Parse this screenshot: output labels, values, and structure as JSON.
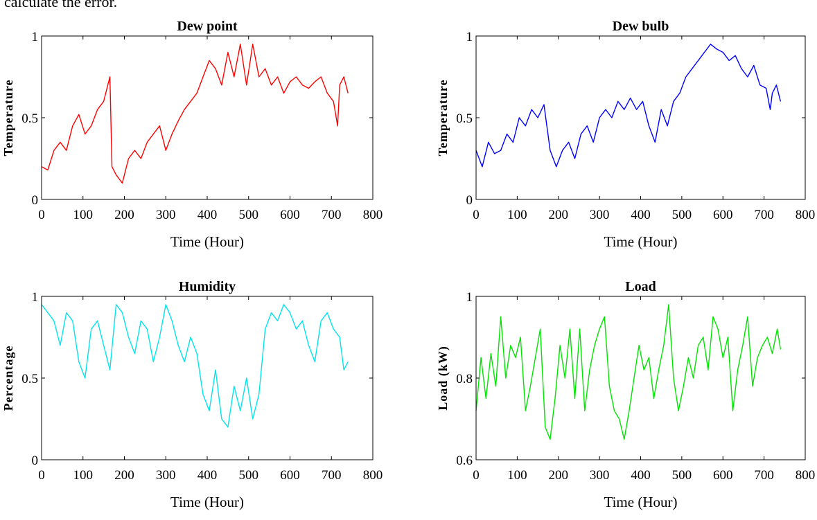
{
  "caption": "calculate the error.",
  "chart_data": [
    {
      "type": "line",
      "title": "Dew point",
      "xlabel": "Time (Hour)",
      "ylabel": "Temperature",
      "xlim": [
        0,
        800
      ],
      "ylim": [
        0,
        1
      ],
      "xticks": [
        "0",
        "100",
        "200",
        "300",
        "400",
        "500",
        "600",
        "700",
        "800"
      ],
      "yticks": [
        "0",
        "0.5",
        "1"
      ],
      "grid": false,
      "color": "#ff0000",
      "series": [
        {
          "x": [
            0,
            15,
            30,
            45,
            60,
            75,
            90,
            105,
            120,
            135,
            150,
            165,
            170,
            180,
            195,
            210,
            225,
            240,
            255,
            270,
            285,
            300,
            315,
            330,
            345,
            360,
            375,
            390,
            405,
            420,
            435,
            450,
            465,
            480,
            495,
            510,
            525,
            540,
            555,
            570,
            585,
            600,
            615,
            630,
            645,
            660,
            675,
            690,
            705,
            715,
            720,
            730,
            740
          ],
          "values": [
            0.2,
            0.18,
            0.3,
            0.35,
            0.3,
            0.45,
            0.52,
            0.4,
            0.45,
            0.55,
            0.6,
            0.75,
            0.2,
            0.15,
            0.1,
            0.25,
            0.3,
            0.25,
            0.35,
            0.4,
            0.45,
            0.3,
            0.4,
            0.48,
            0.55,
            0.6,
            0.65,
            0.75,
            0.85,
            0.8,
            0.7,
            0.9,
            0.75,
            0.95,
            0.7,
            0.95,
            0.75,
            0.8,
            0.7,
            0.75,
            0.65,
            0.72,
            0.75,
            0.7,
            0.68,
            0.72,
            0.75,
            0.65,
            0.6,
            0.45,
            0.7,
            0.75,
            0.65
          ]
        }
      ]
    },
    {
      "type": "line",
      "title": "Dew bulb",
      "xlabel": "Time (Hour)",
      "ylabel": "Temperature",
      "xlim": [
        0,
        800
      ],
      "ylim": [
        0,
        1
      ],
      "xticks": [
        "0",
        "100",
        "200",
        "300",
        "400",
        "500",
        "600",
        "700",
        "800"
      ],
      "yticks": [
        "0",
        "0.5",
        "1"
      ],
      "grid": false,
      "color": "#0000ff",
      "series": [
        {
          "x": [
            0,
            15,
            30,
            45,
            60,
            75,
            90,
            105,
            120,
            135,
            150,
            165,
            180,
            195,
            210,
            225,
            240,
            255,
            270,
            285,
            300,
            315,
            330,
            345,
            360,
            375,
            390,
            405,
            420,
            435,
            450,
            465,
            480,
            495,
            510,
            525,
            540,
            555,
            570,
            585,
            600,
            615,
            630,
            645,
            660,
            675,
            690,
            705,
            715,
            720,
            730,
            740
          ],
          "values": [
            0.3,
            0.2,
            0.35,
            0.28,
            0.3,
            0.4,
            0.35,
            0.5,
            0.45,
            0.55,
            0.5,
            0.58,
            0.3,
            0.2,
            0.3,
            0.35,
            0.25,
            0.4,
            0.45,
            0.35,
            0.5,
            0.55,
            0.5,
            0.6,
            0.55,
            0.62,
            0.55,
            0.6,
            0.45,
            0.35,
            0.55,
            0.45,
            0.6,
            0.65,
            0.75,
            0.8,
            0.85,
            0.9,
            0.95,
            0.92,
            0.9,
            0.85,
            0.88,
            0.8,
            0.75,
            0.82,
            0.7,
            0.68,
            0.55,
            0.65,
            0.7,
            0.6
          ]
        }
      ]
    },
    {
      "type": "line",
      "title": "Humidity",
      "xlabel": "Time (Hour)",
      "ylabel": "Percentage",
      "xlim": [
        0,
        800
      ],
      "ylim": [
        0,
        1
      ],
      "xticks": [
        "0",
        "100",
        "200",
        "300",
        "400",
        "500",
        "600",
        "700",
        "800"
      ],
      "yticks": [
        "0",
        "0.5",
        "1"
      ],
      "grid": false,
      "color": "#00e5ee",
      "series": [
        {
          "x": [
            0,
            15,
            30,
            45,
            60,
            75,
            90,
            105,
            120,
            135,
            150,
            165,
            180,
            195,
            210,
            225,
            240,
            255,
            270,
            285,
            300,
            315,
            330,
            345,
            360,
            375,
            390,
            405,
            420,
            435,
            450,
            465,
            480,
            495,
            510,
            525,
            540,
            555,
            570,
            585,
            600,
            615,
            630,
            645,
            660,
            675,
            690,
            705,
            720,
            730,
            740
          ],
          "values": [
            0.95,
            0.9,
            0.85,
            0.7,
            0.9,
            0.85,
            0.6,
            0.5,
            0.8,
            0.85,
            0.7,
            0.55,
            0.95,
            0.9,
            0.75,
            0.65,
            0.85,
            0.8,
            0.6,
            0.75,
            0.95,
            0.85,
            0.7,
            0.6,
            0.75,
            0.65,
            0.4,
            0.3,
            0.55,
            0.25,
            0.2,
            0.45,
            0.3,
            0.5,
            0.25,
            0.4,
            0.8,
            0.9,
            0.85,
            0.95,
            0.9,
            0.8,
            0.85,
            0.7,
            0.6,
            0.85,
            0.9,
            0.8,
            0.75,
            0.55,
            0.6
          ]
        }
      ]
    },
    {
      "type": "line",
      "title": "Load",
      "xlabel": "Time (Hour)",
      "ylabel": "Load (kW)",
      "xlim": [
        0,
        800
      ],
      "ylim": [
        0.6,
        1
      ],
      "xticks": [
        "0",
        "100",
        "200",
        "300",
        "400",
        "500",
        "600",
        "700",
        "800"
      ],
      "yticks": [
        "0.6",
        "0.8",
        "1"
      ],
      "grid": false,
      "color": "#00e400",
      "series": [
        {
          "x": [
            0,
            12,
            24,
            36,
            48,
            60,
            72,
            84,
            96,
            108,
            120,
            132,
            144,
            156,
            168,
            180,
            192,
            204,
            216,
            228,
            240,
            252,
            264,
            276,
            288,
            300,
            312,
            324,
            336,
            348,
            360,
            372,
            384,
            396,
            408,
            420,
            432,
            444,
            456,
            468,
            480,
            492,
            504,
            516,
            528,
            540,
            552,
            564,
            576,
            588,
            600,
            612,
            624,
            636,
            648,
            660,
            672,
            684,
            696,
            708,
            720,
            732,
            740
          ],
          "values": [
            0.72,
            0.85,
            0.75,
            0.86,
            0.78,
            0.95,
            0.8,
            0.88,
            0.85,
            0.9,
            0.72,
            0.78,
            0.85,
            0.92,
            0.68,
            0.65,
            0.75,
            0.88,
            0.8,
            0.92,
            0.75,
            0.92,
            0.72,
            0.82,
            0.88,
            0.92,
            0.95,
            0.78,
            0.72,
            0.7,
            0.65,
            0.72,
            0.8,
            0.88,
            0.82,
            0.85,
            0.75,
            0.82,
            0.88,
            0.98,
            0.8,
            0.72,
            0.78,
            0.85,
            0.8,
            0.88,
            0.9,
            0.82,
            0.95,
            0.92,
            0.85,
            0.9,
            0.72,
            0.82,
            0.88,
            0.95,
            0.78,
            0.85,
            0.88,
            0.9,
            0.86,
            0.92,
            0.87
          ]
        }
      ]
    }
  ]
}
